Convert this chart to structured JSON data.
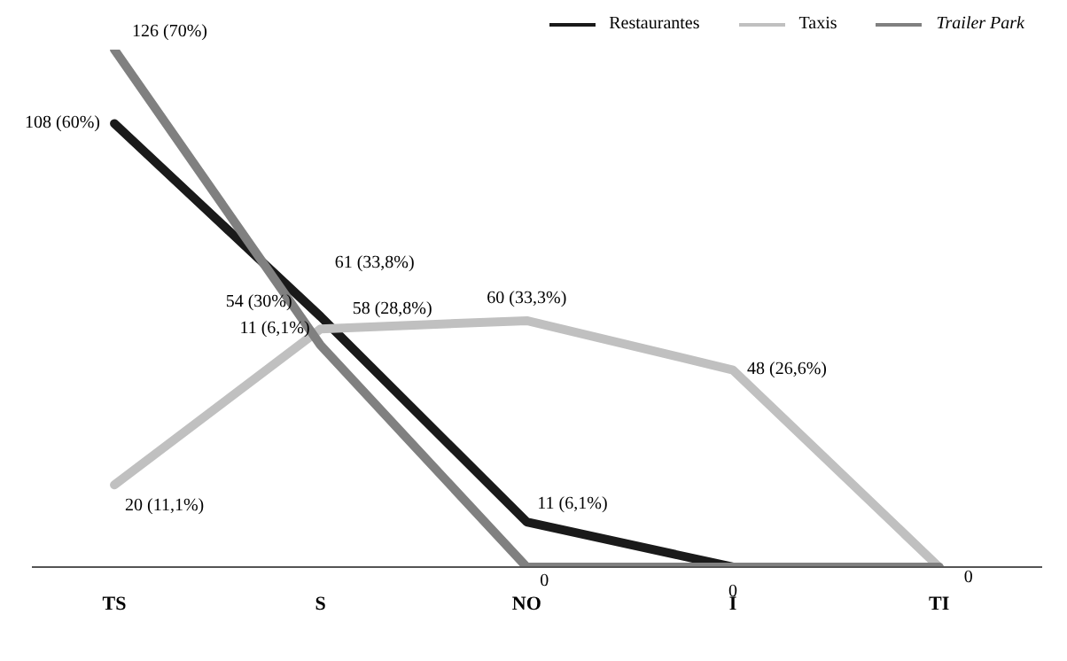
{
  "chart_data": {
    "type": "line",
    "categories": [
      "TS",
      "S",
      "NO",
      "I",
      "TI"
    ],
    "tick_labels": "x",
    "legend": "top right",
    "grid": false,
    "marker": "none",
    "line_style": "solid",
    "series": [
      {
        "name": "Restaurantes",
        "color": "#1a1a1a",
        "values": [
          108,
          61,
          11,
          0,
          0
        ],
        "value_labels": [
          "108 (60%)",
          "61 (33,8%)",
          "11 (6,1%)",
          "0",
          null
        ]
      },
      {
        "name": "Taxis",
        "color": "#c0c0c0",
        "values": [
          20,
          58,
          60,
          48,
          0
        ],
        "value_labels": [
          "20 (11,1%)",
          "58 (28,8%)",
          "60 (33,3%)",
          "48 (26,6%)",
          "0"
        ]
      },
      {
        "name": "Trailer Park",
        "color": "#808080",
        "values": [
          126,
          54,
          0,
          0,
          0
        ],
        "value_labels": [
          "126 (70%)",
          "54 (30%)",
          "0",
          null,
          null
        ]
      }
    ],
    "annotations": [
      {
        "text": "11 (6,1%)",
        "x": "S",
        "y": 58
      }
    ]
  }
}
